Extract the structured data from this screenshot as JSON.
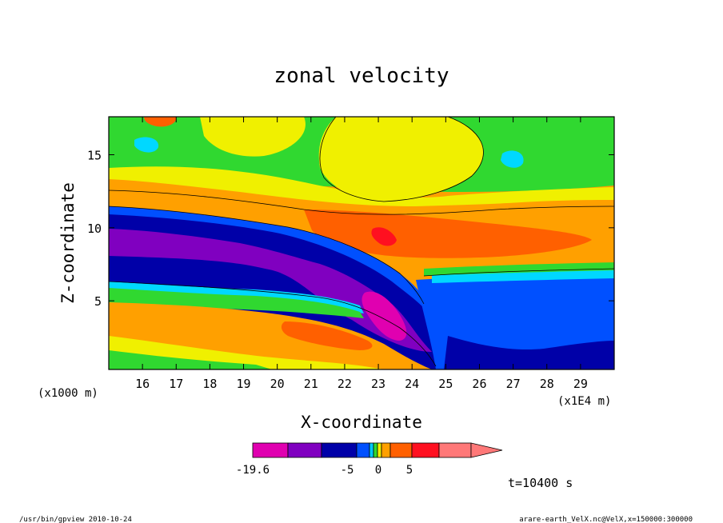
{
  "chart_data": {
    "type": "heatmap",
    "title": "zonal velocity",
    "xlabel": "X-coordinate",
    "ylabel": "Z-coordinate",
    "x_ticks": [
      16,
      17,
      18,
      19,
      20,
      21,
      22,
      23,
      24,
      25,
      26,
      27,
      28,
      29
    ],
    "y_ticks": [
      5,
      10,
      15
    ],
    "x_unit_label": "(x1E4 m)",
    "y_unit_label": "(x1000 m)",
    "xlim": [
      15.0,
      30.0
    ],
    "ylim": [
      0.3,
      17.6
    ],
    "colorbar": {
      "tick_labels": [
        "-19.6",
        "-5",
        "0",
        "5"
      ],
      "colors": [
        "#e000b0",
        "#8000c0",
        "#0000a8",
        "#0050ff",
        "#00c8ff",
        "#30d830",
        "#f0f000",
        "#ffa000",
        "#ff6000",
        "#ff1020",
        "#ff7878"
      ]
    },
    "annotation": "t=10400 s",
    "footer_left": "/usr/bin/gpview   2010-10-24",
    "footer_right": "arare-earth_VelX.nc@VelX,x=150000:300000"
  }
}
